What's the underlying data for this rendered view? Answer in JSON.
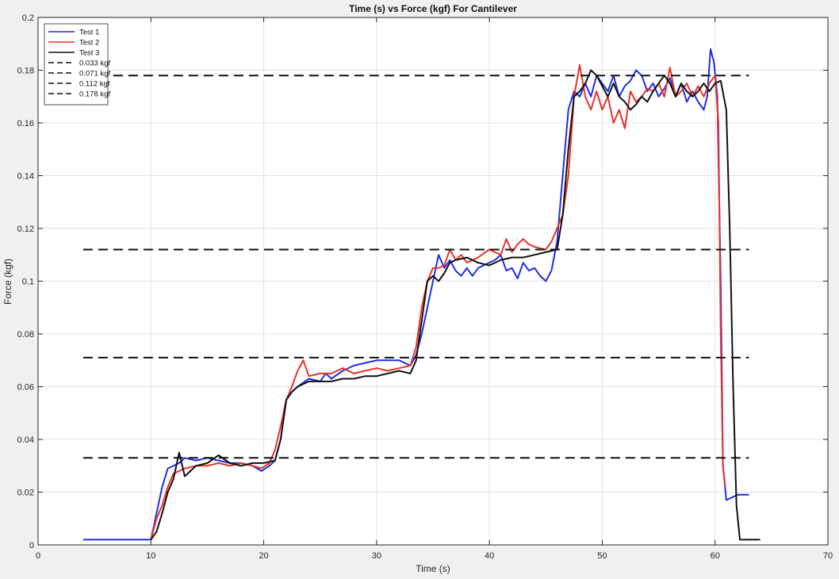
{
  "chart_data": {
    "type": "line",
    "title": "Time (s) vs Force (kgf) For Cantilever",
    "xlabel": "Time (s)",
    "ylabel": "Force (kgf)",
    "xlim": [
      0,
      70
    ],
    "ylim": [
      0,
      0.2
    ],
    "xticks": [
      0,
      10,
      20,
      30,
      40,
      50,
      60,
      70
    ],
    "yticks": [
      0,
      0.02,
      0.04,
      0.06,
      0.08,
      0.1,
      0.12,
      0.14,
      0.16,
      0.18,
      0.2
    ],
    "xtick_labels": [
      "0",
      "10",
      "20",
      "30",
      "40",
      "50",
      "60",
      "70"
    ],
    "ytick_labels": [
      "0",
      "0.02",
      "0.04",
      "0.06",
      "0.08",
      "0.1",
      "0.12",
      "0.14",
      "0.16",
      "0.18",
      "0.2"
    ],
    "grid": true,
    "legend_position": "top-left",
    "series": [
      {
        "name": "Test 1",
        "color": "#1f2fe0",
        "style": "solid",
        "points": [
          [
            4,
            0.002
          ],
          [
            10,
            0.002
          ],
          [
            10.5,
            0.012
          ],
          [
            11,
            0.022
          ],
          [
            11.5,
            0.029
          ],
          [
            12.5,
            0.031
          ],
          [
            13,
            0.033
          ],
          [
            14,
            0.032
          ],
          [
            15,
            0.033
          ],
          [
            16,
            0.032
          ],
          [
            17,
            0.031
          ],
          [
            18,
            0.031
          ],
          [
            19,
            0.03
          ],
          [
            19.8,
            0.028
          ],
          [
            20.5,
            0.03
          ],
          [
            21,
            0.032
          ],
          [
            21.5,
            0.04
          ],
          [
            22,
            0.055
          ],
          [
            22.5,
            0.058
          ],
          [
            23,
            0.06
          ],
          [
            24,
            0.063
          ],
          [
            25,
            0.062
          ],
          [
            25.5,
            0.065
          ],
          [
            26,
            0.063
          ],
          [
            27,
            0.066
          ],
          [
            28,
            0.068
          ],
          [
            29,
            0.069
          ],
          [
            30,
            0.07
          ],
          [
            31,
            0.07
          ],
          [
            32,
            0.07
          ],
          [
            33,
            0.068
          ],
          [
            33.5,
            0.072
          ],
          [
            34,
            0.08
          ],
          [
            34.5,
            0.09
          ],
          [
            35,
            0.1
          ],
          [
            35.5,
            0.11
          ],
          [
            36,
            0.105
          ],
          [
            36.5,
            0.108
          ],
          [
            37,
            0.104
          ],
          [
            37.5,
            0.102
          ],
          [
            38,
            0.105
          ],
          [
            38.5,
            0.102
          ],
          [
            39,
            0.105
          ],
          [
            40,
            0.107
          ],
          [
            40.5,
            0.108
          ],
          [
            41,
            0.11
          ],
          [
            41.5,
            0.104
          ],
          [
            42,
            0.105
          ],
          [
            42.5,
            0.101
          ],
          [
            43,
            0.107
          ],
          [
            43.5,
            0.104
          ],
          [
            44,
            0.105
          ],
          [
            44.5,
            0.102
          ],
          [
            45,
            0.1
          ],
          [
            45.5,
            0.104
          ],
          [
            46,
            0.115
          ],
          [
            46.5,
            0.14
          ],
          [
            47,
            0.165
          ],
          [
            47.5,
            0.172
          ],
          [
            48,
            0.17
          ],
          [
            48.5,
            0.175
          ],
          [
            49,
            0.17
          ],
          [
            49.5,
            0.178
          ],
          [
            50,
            0.175
          ],
          [
            50.5,
            0.172
          ],
          [
            51,
            0.178
          ],
          [
            51.5,
            0.17
          ],
          [
            52,
            0.174
          ],
          [
            52.5,
            0.176
          ],
          [
            53,
            0.18
          ],
          [
            53.5,
            0.178
          ],
          [
            54,
            0.172
          ],
          [
            54.5,
            0.175
          ],
          [
            55,
            0.17
          ],
          [
            55.5,
            0.173
          ],
          [
            56,
            0.177
          ],
          [
            56.5,
            0.17
          ],
          [
            57,
            0.175
          ],
          [
            57.5,
            0.168
          ],
          [
            58,
            0.172
          ],
          [
            58.5,
            0.168
          ],
          [
            59,
            0.165
          ],
          [
            59.3,
            0.17
          ],
          [
            59.6,
            0.188
          ],
          [
            59.9,
            0.183
          ],
          [
            60.2,
            0.17
          ],
          [
            60.5,
            0.1
          ],
          [
            60.7,
            0.03
          ],
          [
            61,
            0.017
          ],
          [
            61.5,
            0.018
          ],
          [
            62,
            0.019
          ],
          [
            63,
            0.019
          ]
        ]
      },
      {
        "name": "Test 2",
        "color": "#e8322a",
        "style": "solid",
        "points": [
          [
            10,
            0.002
          ],
          [
            10.5,
            0.01
          ],
          [
            11,
            0.015
          ],
          [
            11.5,
            0.022
          ],
          [
            12,
            0.027
          ],
          [
            13,
            0.029
          ],
          [
            14,
            0.03
          ],
          [
            15,
            0.03
          ],
          [
            16,
            0.031
          ],
          [
            17,
            0.03
          ],
          [
            18,
            0.031
          ],
          [
            19,
            0.03
          ],
          [
            19.8,
            0.029
          ],
          [
            20.5,
            0.031
          ],
          [
            21,
            0.036
          ],
          [
            21.5,
            0.045
          ],
          [
            22,
            0.055
          ],
          [
            22.5,
            0.06
          ],
          [
            23,
            0.066
          ],
          [
            23.5,
            0.07
          ],
          [
            24,
            0.064
          ],
          [
            25,
            0.065
          ],
          [
            26,
            0.065
          ],
          [
            26.5,
            0.066
          ],
          [
            27,
            0.067
          ],
          [
            28,
            0.065
          ],
          [
            29,
            0.066
          ],
          [
            30,
            0.067
          ],
          [
            31,
            0.066
          ],
          [
            32,
            0.067
          ],
          [
            33,
            0.068
          ],
          [
            33.5,
            0.075
          ],
          [
            34,
            0.09
          ],
          [
            34.5,
            0.1
          ],
          [
            35,
            0.105
          ],
          [
            35.5,
            0.105
          ],
          [
            36,
            0.106
          ],
          [
            36.5,
            0.112
          ],
          [
            37,
            0.108
          ],
          [
            37.5,
            0.11
          ],
          [
            38,
            0.107
          ],
          [
            39,
            0.109
          ],
          [
            40,
            0.112
          ],
          [
            41,
            0.11
          ],
          [
            41.5,
            0.116
          ],
          [
            42,
            0.111
          ],
          [
            42.5,
            0.114
          ],
          [
            43,
            0.116
          ],
          [
            43.5,
            0.114
          ],
          [
            44,
            0.113
          ],
          [
            45,
            0.112
          ],
          [
            45.5,
            0.115
          ],
          [
            46,
            0.12
          ],
          [
            46.5,
            0.125
          ],
          [
            47,
            0.14
          ],
          [
            47.5,
            0.17
          ],
          [
            48,
            0.182
          ],
          [
            48.5,
            0.17
          ],
          [
            49,
            0.165
          ],
          [
            49.5,
            0.172
          ],
          [
            50,
            0.165
          ],
          [
            50.5,
            0.17
          ],
          [
            51,
            0.16
          ],
          [
            51.5,
            0.165
          ],
          [
            52,
            0.158
          ],
          [
            52.5,
            0.172
          ],
          [
            53,
            0.168
          ],
          [
            53.5,
            0.17
          ],
          [
            54,
            0.173
          ],
          [
            54.5,
            0.172
          ],
          [
            55,
            0.175
          ],
          [
            55.5,
            0.17
          ],
          [
            56,
            0.181
          ],
          [
            56.5,
            0.17
          ],
          [
            57,
            0.172
          ],
          [
            57.5,
            0.175
          ],
          [
            58,
            0.17
          ],
          [
            58.5,
            0.174
          ],
          [
            59,
            0.17
          ],
          [
            59.5,
            0.175
          ],
          [
            60,
            0.178
          ],
          [
            60.3,
            0.16
          ],
          [
            60.5,
            0.08
          ],
          [
            60.7,
            0.03
          ],
          [
            60.9,
            0.022
          ]
        ]
      },
      {
        "name": "Test 3",
        "color": "#111111",
        "style": "solid",
        "points": [
          [
            10,
            0.002
          ],
          [
            10.5,
            0.005
          ],
          [
            11,
            0.012
          ],
          [
            11.5,
            0.02
          ],
          [
            12,
            0.025
          ],
          [
            12.5,
            0.035
          ],
          [
            13,
            0.026
          ],
          [
            13.5,
            0.028
          ],
          [
            14,
            0.03
          ],
          [
            15,
            0.031
          ],
          [
            16,
            0.034
          ],
          [
            17,
            0.031
          ],
          [
            18,
            0.03
          ],
          [
            19,
            0.031
          ],
          [
            20,
            0.031
          ],
          [
            21,
            0.032
          ],
          [
            21.5,
            0.04
          ],
          [
            22,
            0.055
          ],
          [
            22.5,
            0.058
          ],
          [
            23,
            0.06
          ],
          [
            24,
            0.062
          ],
          [
            25,
            0.062
          ],
          [
            26,
            0.062
          ],
          [
            27,
            0.063
          ],
          [
            28,
            0.063
          ],
          [
            29,
            0.064
          ],
          [
            30,
            0.064
          ],
          [
            31,
            0.065
          ],
          [
            32,
            0.066
          ],
          [
            33,
            0.065
          ],
          [
            33.5,
            0.07
          ],
          [
            34,
            0.085
          ],
          [
            34.5,
            0.1
          ],
          [
            35,
            0.102
          ],
          [
            35.5,
            0.1
          ],
          [
            36,
            0.103
          ],
          [
            36.5,
            0.107
          ],
          [
            37,
            0.108
          ],
          [
            38,
            0.109
          ],
          [
            39,
            0.107
          ],
          [
            40,
            0.106
          ],
          [
            41,
            0.108
          ],
          [
            42,
            0.109
          ],
          [
            43,
            0.109
          ],
          [
            44,
            0.11
          ],
          [
            45,
            0.111
          ],
          [
            46,
            0.112
          ],
          [
            46.5,
            0.125
          ],
          [
            47,
            0.15
          ],
          [
            47.5,
            0.17
          ],
          [
            48,
            0.172
          ],
          [
            48.5,
            0.175
          ],
          [
            49,
            0.18
          ],
          [
            49.5,
            0.178
          ],
          [
            50,
            0.174
          ],
          [
            50.5,
            0.17
          ],
          [
            51,
            0.175
          ],
          [
            51.5,
            0.17
          ],
          [
            52,
            0.168
          ],
          [
            52.5,
            0.165
          ],
          [
            53,
            0.167
          ],
          [
            53.5,
            0.17
          ],
          [
            54,
            0.168
          ],
          [
            54.5,
            0.172
          ],
          [
            55,
            0.175
          ],
          [
            55.5,
            0.178
          ],
          [
            56,
            0.175
          ],
          [
            56.5,
            0.17
          ],
          [
            57,
            0.175
          ],
          [
            57.5,
            0.172
          ],
          [
            58,
            0.17
          ],
          [
            58.5,
            0.172
          ],
          [
            59,
            0.175
          ],
          [
            59.5,
            0.172
          ],
          [
            60,
            0.175
          ],
          [
            60.5,
            0.176
          ],
          [
            61,
            0.165
          ],
          [
            61.3,
            0.12
          ],
          [
            61.6,
            0.06
          ],
          [
            61.9,
            0.015
          ],
          [
            62.2,
            0.002
          ],
          [
            64,
            0.002
          ]
        ]
      },
      {
        "name": "0.033 kgf",
        "color": "#111111",
        "style": "dashed",
        "points": [
          [
            4,
            0.033
          ],
          [
            63,
            0.033
          ]
        ]
      },
      {
        "name": "0.071 kgf",
        "color": "#111111",
        "style": "dashed",
        "points": [
          [
            4,
            0.071
          ],
          [
            63,
            0.071
          ]
        ]
      },
      {
        "name": "0.112 kgf",
        "color": "#111111",
        "style": "dashed",
        "points": [
          [
            4,
            0.112
          ],
          [
            63,
            0.112
          ]
        ]
      },
      {
        "name": "0.178 kgf",
        "color": "#111111",
        "style": "dashed",
        "points": [
          [
            4,
            0.178
          ],
          [
            63,
            0.178
          ]
        ]
      }
    ]
  }
}
